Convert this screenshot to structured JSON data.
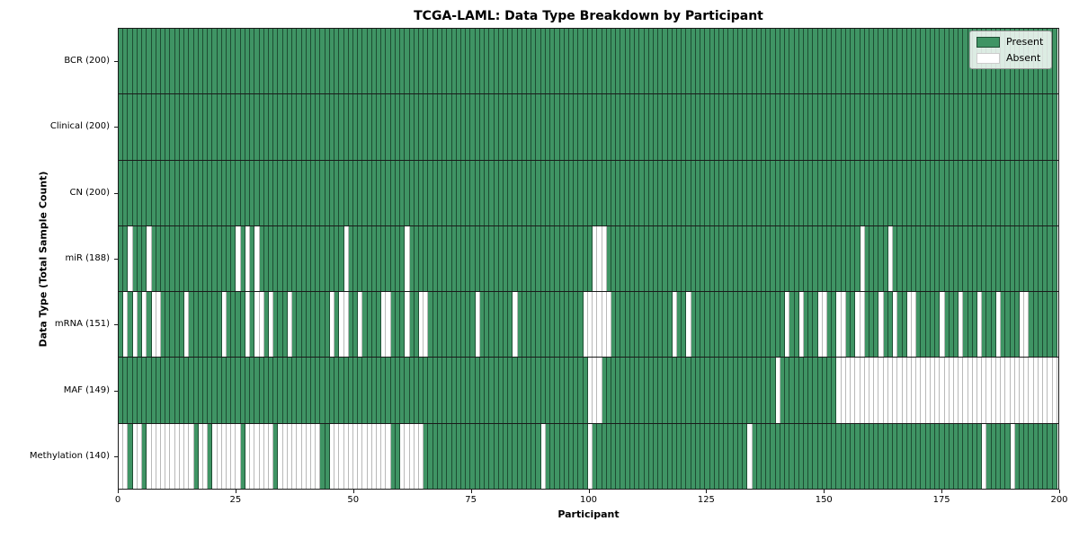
{
  "title": "TCGA-LAML: Data Type Breakdown by Participant",
  "x_axis": {
    "label": "Participant",
    "ticks": [
      0,
      25,
      50,
      75,
      100,
      125,
      150,
      175,
      200
    ],
    "min": 0,
    "max": 200
  },
  "y_axis": {
    "label": "Data Type (Total Sample Count)"
  },
  "legend": {
    "items": [
      {
        "label": "Present",
        "color": "#3f9464",
        "edge": "#1e4d33"
      },
      {
        "label": "Absent",
        "color": "#ffffff",
        "edge": "#cccccc"
      }
    ]
  },
  "colors": {
    "present": "#3f9464",
    "present_edge": "#1e4d33",
    "absent": "#ffffff",
    "absent_edge": "#b9b9b9",
    "grid_line": "#1a1a1a"
  },
  "chart_data": {
    "type": "heatmap",
    "title": "TCGA-LAML: Data Type Breakdown by Participant",
    "xlabel": "Participant",
    "ylabel": "Data Type (Total Sample Count)",
    "x_range": [
      0,
      200
    ],
    "n_participants": 200,
    "legend_position": "upper right",
    "rows": [
      {
        "label": "BCR (200)",
        "name": "BCR",
        "present_count": 200,
        "absent": []
      },
      {
        "label": "Clinical (200)",
        "name": "Clinical",
        "present_count": 200,
        "absent": []
      },
      {
        "label": "CN (200)",
        "name": "CN",
        "present_count": 200,
        "absent": []
      },
      {
        "label": "miR (188)",
        "name": "miR",
        "present_count": 188,
        "absent": [
          2,
          6,
          25,
          27,
          29,
          48,
          61,
          101,
          102,
          103,
          158,
          164
        ]
      },
      {
        "label": "mRNA (151)",
        "name": "mRNA",
        "present_count": 151,
        "absent": [
          1,
          3,
          5,
          7,
          8,
          14,
          22,
          27,
          29,
          30,
          32,
          36,
          45,
          47,
          48,
          51,
          56,
          57,
          61,
          64,
          65,
          76,
          84,
          99,
          100,
          101,
          102,
          103,
          104,
          118,
          121,
          142,
          145,
          149,
          150,
          153,
          154,
          157,
          158,
          162,
          165,
          168,
          169,
          175,
          179,
          183,
          187,
          192,
          193
        ]
      },
      {
        "label": "MAF (149)",
        "name": "MAF",
        "present_count": 149,
        "absent": [
          100,
          101,
          102,
          140,
          153,
          154,
          155,
          156,
          157,
          158,
          159,
          160,
          161,
          162,
          163,
          164,
          165,
          166,
          167,
          168,
          169,
          170,
          171,
          172,
          173,
          174,
          175,
          176,
          177,
          178,
          179,
          180,
          181,
          182,
          183,
          184,
          185,
          186,
          187,
          188,
          189,
          190,
          191,
          192,
          193,
          194,
          195,
          196,
          197,
          198,
          199
        ]
      },
      {
        "label": "Methylation (140)",
        "name": "Methylation",
        "present_count": 140,
        "absent": [
          0,
          1,
          3,
          4,
          6,
          7,
          8,
          9,
          10,
          11,
          12,
          13,
          14,
          15,
          17,
          18,
          20,
          21,
          22,
          23,
          24,
          25,
          27,
          28,
          29,
          30,
          31,
          32,
          34,
          35,
          36,
          37,
          38,
          39,
          40,
          41,
          42,
          45,
          46,
          47,
          48,
          49,
          50,
          51,
          52,
          53,
          54,
          55,
          56,
          57,
          60,
          61,
          62,
          63,
          64,
          90,
          100,
          134,
          184,
          190
        ]
      }
    ]
  }
}
